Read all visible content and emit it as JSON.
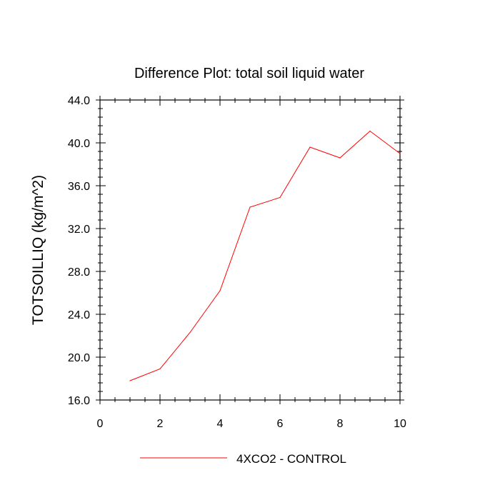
{
  "chart_data": {
    "type": "line",
    "title": "Difference Plot: total soil liquid water",
    "xlabel": "",
    "ylabel": "TOTSOILLIQ  (kg/m^2)",
    "xlim": [
      0,
      10
    ],
    "ylim": [
      16,
      44
    ],
    "xticks": [
      "0",
      "2",
      "4",
      "6",
      "8",
      "10"
    ],
    "yticks": [
      "16.0",
      "20.0",
      "24.0",
      "28.0",
      "32.0",
      "36.0",
      "40.0",
      "44.0"
    ],
    "grid": false,
    "legend_position": "bottom-center",
    "series": [
      {
        "name": "4XCO2 - CONTROL",
        "color": "#ff0000",
        "x": [
          1,
          2,
          3,
          4,
          5,
          6,
          7,
          8,
          9,
          10
        ],
        "y": [
          17.8,
          18.9,
          22.3,
          26.2,
          34.0,
          34.9,
          39.6,
          38.6,
          41.1,
          39.0
        ]
      }
    ]
  }
}
